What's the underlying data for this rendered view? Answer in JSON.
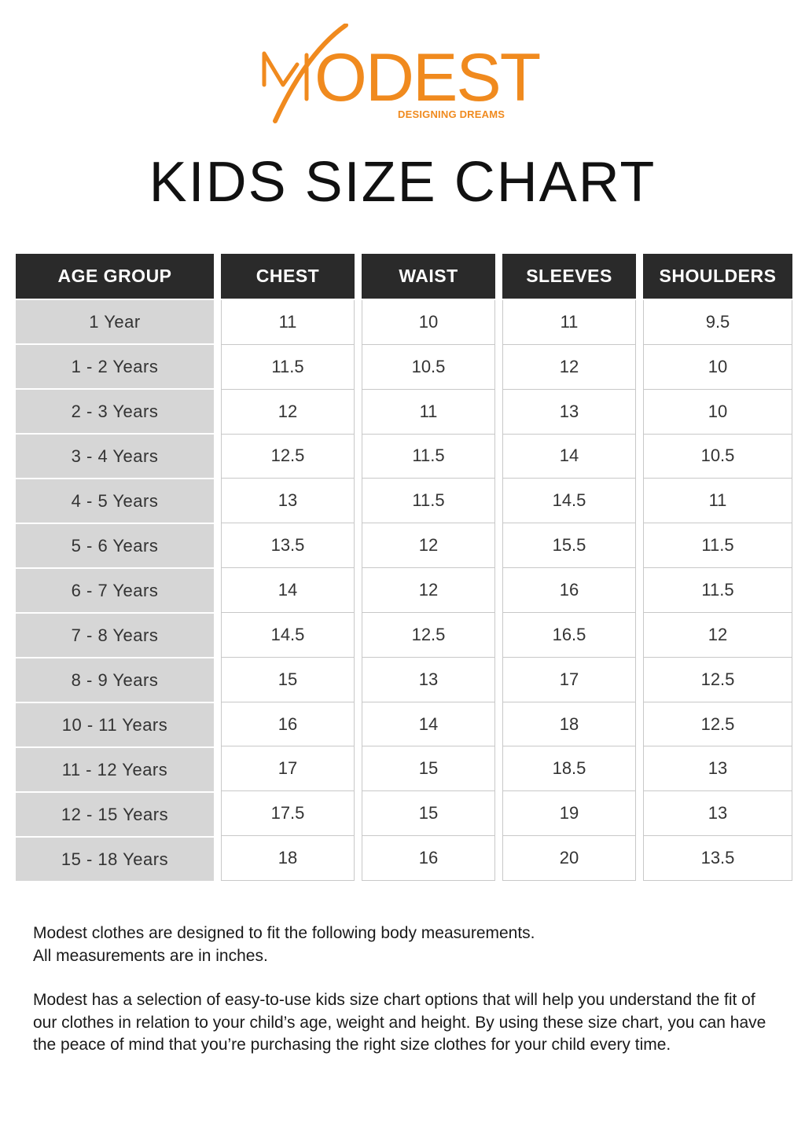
{
  "brand": {
    "name": "MODEST",
    "tagline": "DESIGNING DREAMS",
    "accent_color": "#f08a1e"
  },
  "title": "KIDS SIZE CHART",
  "table": {
    "headers": {
      "age": "AGE GROUP",
      "chest": "CHEST",
      "waist": "WAIST",
      "sleeves": "SLEEVES",
      "shoulders": "SHOULDERS"
    },
    "rows": [
      {
        "age": "1 Year",
        "chest": "11",
        "waist": "10",
        "sleeves": "11",
        "shoulders": "9.5"
      },
      {
        "age": "1 - 2 Years",
        "chest": "11.5",
        "waist": "10.5",
        "sleeves": "12",
        "shoulders": "10"
      },
      {
        "age": "2 - 3 Years",
        "chest": "12",
        "waist": "11",
        "sleeves": "13",
        "shoulders": "10"
      },
      {
        "age": "3 - 4 Years",
        "chest": "12.5",
        "waist": "11.5",
        "sleeves": "14",
        "shoulders": "10.5"
      },
      {
        "age": "4 - 5 Years",
        "chest": "13",
        "waist": "11.5",
        "sleeves": "14.5",
        "shoulders": "11"
      },
      {
        "age": "5 - 6 Years",
        "chest": "13.5",
        "waist": "12",
        "sleeves": "15.5",
        "shoulders": "11.5"
      },
      {
        "age": "6 - 7 Years",
        "chest": "14",
        "waist": "12",
        "sleeves": "16",
        "shoulders": "11.5"
      },
      {
        "age": "7 - 8 Years",
        "chest": "14.5",
        "waist": "12.5",
        "sleeves": "16.5",
        "shoulders": "12"
      },
      {
        "age": "8 - 9 Years",
        "chest": "15",
        "waist": "13",
        "sleeves": "17",
        "shoulders": "12.5"
      },
      {
        "age": "10 - 11 Years",
        "chest": "16",
        "waist": "14",
        "sleeves": "18",
        "shoulders": "12.5"
      },
      {
        "age": "11 - 12 Years",
        "chest": "17",
        "waist": "15",
        "sleeves": "18.5",
        "shoulders": "13"
      },
      {
        "age": "12 - 15 Years",
        "chest": "17.5",
        "waist": "15",
        "sleeves": "19",
        "shoulders": "13"
      },
      {
        "age": "15 - 18 Years",
        "chest": "18",
        "waist": "16",
        "sleeves": "20",
        "shoulders": "13.5"
      }
    ]
  },
  "notes": {
    "line1": "Modest clothes are designed to fit the following body measurements.",
    "line2": "All measurements are in inches.",
    "paragraph2": "Modest has a selection of easy-to-use kids size chart options that will help you understand the fit of our clothes in relation to your child’s age, weight and height. By using these size chart, you can have the peace of mind that you’re purchasing the right size clothes for your child every time."
  }
}
